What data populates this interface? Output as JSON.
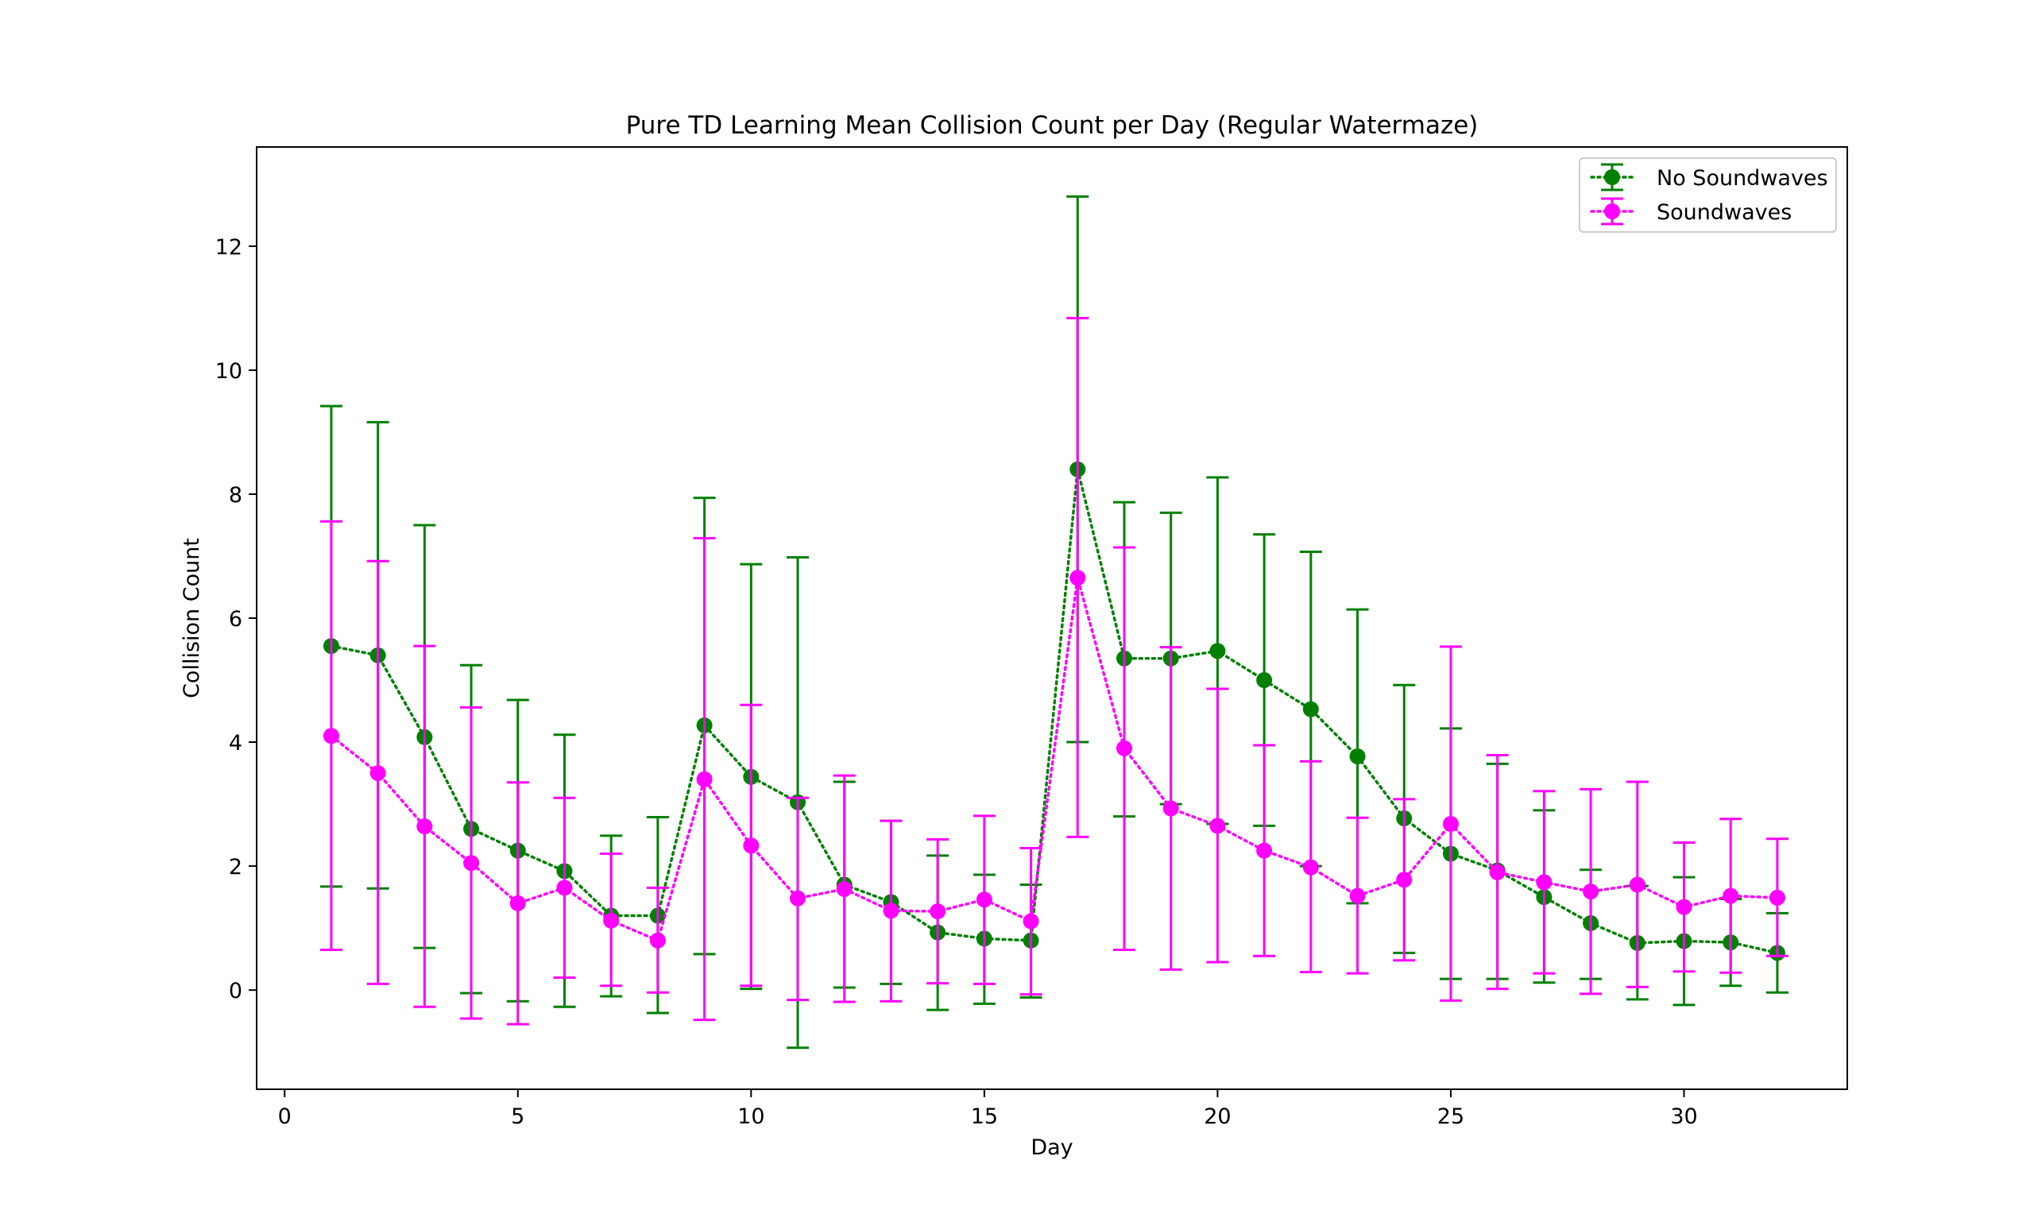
{
  "chart_data": {
    "type": "line",
    "title": "Pure TD Learning Mean Collision Count per Day (Regular Watermaze)",
    "xlabel": "Day",
    "ylabel": "Collision Count",
    "xlim": [
      -0.6,
      33.5
    ],
    "ylim": [
      -1.6,
      13.6
    ],
    "x_ticks": [
      0,
      5,
      10,
      15,
      20,
      25,
      30
    ],
    "y_ticks": [
      0,
      2,
      4,
      6,
      8,
      10,
      12
    ],
    "grid": false,
    "legend_position": "top-right",
    "x": [
      1,
      2,
      3,
      4,
      5,
      6,
      7,
      8,
      9,
      10,
      11,
      12,
      13,
      14,
      15,
      16,
      17,
      18,
      19,
      20,
      21,
      22,
      23,
      24,
      25,
      26,
      27,
      28,
      29,
      30,
      31,
      32
    ],
    "series": [
      {
        "name": "No Soundwaves",
        "color": "#008000",
        "linestyle": "dotted",
        "marker": "circle",
        "values": [
          5.55,
          5.4,
          4.08,
          2.6,
          2.25,
          1.92,
          1.2,
          1.2,
          4.27,
          3.44,
          3.03,
          1.7,
          1.42,
          0.93,
          0.83,
          0.8,
          8.4,
          5.35,
          5.35,
          5.47,
          5.0,
          4.53,
          3.77,
          2.77,
          2.2,
          1.93,
          1.5,
          1.08,
          0.76,
          0.79,
          0.77,
          0.6
        ],
        "err_low": [
          1.67,
          1.64,
          0.68,
          -0.05,
          -0.18,
          -0.27,
          -0.1,
          -0.37,
          0.58,
          0.02,
          -0.93,
          0.04,
          0.1,
          -0.32,
          -0.22,
          -0.12,
          4.0,
          2.8,
          3.0,
          2.68,
          2.65,
          2.0,
          1.4,
          0.6,
          0.18,
          0.18,
          0.12,
          0.18,
          -0.15,
          -0.24,
          0.07,
          -0.04
        ],
        "err_high": [
          9.42,
          9.16,
          7.5,
          5.24,
          4.68,
          4.12,
          2.49,
          2.79,
          7.94,
          6.87,
          6.98,
          3.36,
          2.73,
          2.17,
          1.86,
          1.7,
          12.8,
          7.87,
          7.7,
          8.27,
          7.35,
          7.07,
          6.14,
          4.92,
          4.22,
          3.65,
          2.9,
          1.94,
          1.68,
          1.82,
          1.47,
          1.24
        ]
      },
      {
        "name": "Soundwaves",
        "color": "#ff00ff",
        "linestyle": "dotted",
        "marker": "circle",
        "values": [
          4.1,
          3.5,
          2.64,
          2.05,
          1.4,
          1.65,
          1.12,
          0.8,
          3.4,
          2.33,
          1.48,
          1.63,
          1.28,
          1.27,
          1.46,
          1.11,
          6.65,
          3.9,
          2.93,
          2.65,
          2.25,
          1.98,
          1.52,
          1.78,
          2.68,
          1.9,
          1.74,
          1.59,
          1.7,
          1.34,
          1.52,
          1.49
        ],
        "err_low": [
          0.65,
          0.1,
          -0.27,
          -0.46,
          -0.55,
          0.2,
          0.07,
          -0.04,
          -0.48,
          0.07,
          -0.16,
          -0.19,
          -0.18,
          0.11,
          0.1,
          -0.07,
          2.47,
          0.65,
          0.33,
          0.45,
          0.55,
          0.29,
          0.27,
          0.48,
          -0.17,
          0.02,
          0.27,
          -0.06,
          0.05,
          0.3,
          0.28,
          0.55
        ],
        "err_high": [
          7.56,
          6.92,
          5.55,
          4.56,
          3.35,
          3.1,
          2.2,
          1.65,
          7.29,
          4.6,
          3.1,
          3.46,
          2.73,
          2.43,
          2.81,
          2.29,
          10.84,
          7.14,
          5.53,
          4.86,
          3.95,
          3.69,
          2.78,
          3.08,
          5.54,
          3.79,
          3.21,
          3.24,
          3.36,
          2.38,
          2.76,
          2.44
        ]
      }
    ]
  }
}
